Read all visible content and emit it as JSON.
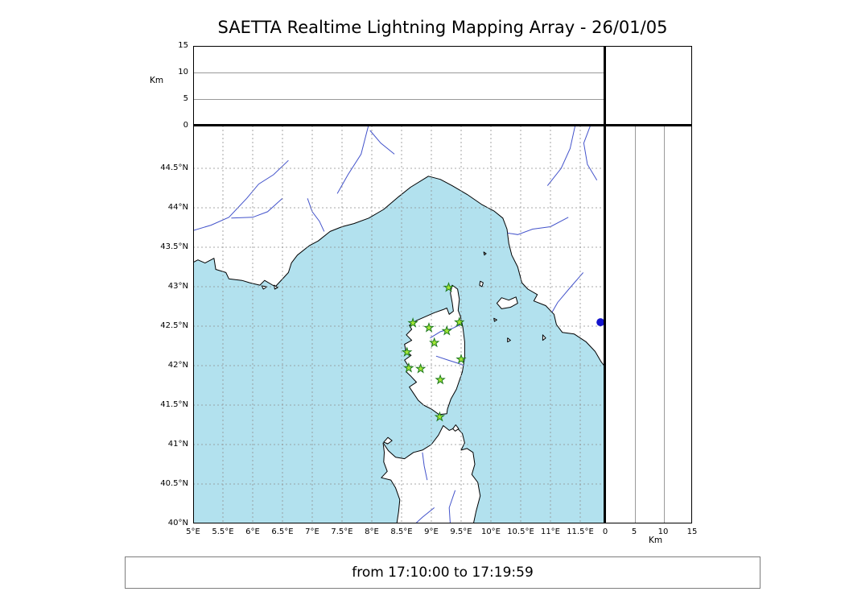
{
  "title": "SAETTA Realtime Lightning Mapping Array - 26/01/05",
  "status_bar": {
    "text": "from 17:10:00 to 17:19:59"
  },
  "colors": {
    "sea": "#b2e1ee",
    "land": "#ffffff",
    "coast": "#000000",
    "river": "#4353cb",
    "grid": "#8f8f8f",
    "panel_grid": "#9a9a9a",
    "station_fill": "#a2e636",
    "station_edge": "#1e7a1e",
    "source_dot": "#1414cc",
    "frame": "#000000"
  },
  "chart_data": {
    "type": "map",
    "title": "SAETTA Realtime Lightning Mapping Array - 26/01/05",
    "time_window": "from 17:10:00 to 17:19:59",
    "map": {
      "lon_range": [
        5.0,
        11.919
      ],
      "lat_range": [
        40.0,
        45.041
      ],
      "lon_ticks": {
        "values": [
          5,
          5.5,
          6,
          6.5,
          7,
          7.5,
          8,
          8.5,
          9,
          9.5,
          10,
          10.5,
          11,
          11.5
        ],
        "labels": [
          "5°E",
          "5.5°E",
          "6°E",
          "6.5°E",
          "7°E",
          "7.5°E",
          "8°E",
          "8.5°E",
          "9°E",
          "9.5°E",
          "10°E",
          "10.5°E",
          "11°E",
          "11.5°E"
        ]
      },
      "lat_ticks": {
        "values": [
          40,
          40.5,
          41,
          41.5,
          42,
          42.5,
          43,
          43.5,
          44,
          44.5
        ],
        "labels": [
          "40°N",
          "40.5°N",
          "41°N",
          "41.5°N",
          "42°N",
          "42.5°N",
          "43°N",
          "43.5°N",
          "44°N",
          "44.5°N"
        ]
      },
      "grid_style": "dashed",
      "stations_lonlat": [
        [
          9.29,
          42.99
        ],
        [
          8.69,
          42.54
        ],
        [
          8.96,
          42.48
        ],
        [
          9.26,
          42.44
        ],
        [
          9.47,
          42.55
        ],
        [
          9.05,
          42.29
        ],
        [
          8.59,
          42.17
        ],
        [
          9.5,
          42.08
        ],
        [
          8.62,
          41.97
        ],
        [
          8.82,
          41.96
        ],
        [
          9.15,
          41.82
        ],
        [
          9.14,
          41.35
        ]
      ],
      "sources_lonlat": [
        [
          11.84,
          42.55
        ]
      ]
    },
    "altitude_panels": {
      "axis_label": "Km",
      "km_range": [
        0,
        15
      ],
      "km_ticks": {
        "values": [
          0,
          5,
          10,
          15
        ],
        "labels": [
          "0",
          "5",
          "10",
          "15"
        ]
      },
      "km_gridlines": [
        5,
        10
      ]
    },
    "features": {
      "land": [
        [
          [
            4.9,
            43.27
          ],
          [
            5.08,
            43.34
          ],
          [
            5.2,
            43.3
          ],
          [
            5.35,
            43.36
          ],
          [
            5.38,
            43.22
          ],
          [
            5.55,
            43.18
          ],
          [
            5.6,
            43.1
          ],
          [
            5.82,
            43.08
          ],
          [
            5.95,
            43.05
          ],
          [
            6.12,
            43.02
          ],
          [
            6.2,
            43.08
          ],
          [
            6.38,
            43.0
          ],
          [
            6.6,
            43.18
          ],
          [
            6.65,
            43.3
          ],
          [
            6.75,
            43.4
          ],
          [
            6.95,
            43.52
          ],
          [
            7.1,
            43.58
          ],
          [
            7.3,
            43.7
          ],
          [
            7.5,
            43.76
          ],
          [
            7.7,
            43.8
          ],
          [
            7.95,
            43.87
          ],
          [
            8.2,
            43.98
          ],
          [
            8.45,
            44.14
          ],
          [
            8.65,
            44.26
          ],
          [
            8.95,
            44.4
          ],
          [
            9.15,
            44.36
          ],
          [
            9.35,
            44.28
          ],
          [
            9.6,
            44.17
          ],
          [
            9.85,
            44.04
          ],
          [
            10.05,
            43.96
          ],
          [
            10.2,
            43.87
          ],
          [
            10.27,
            43.73
          ],
          [
            10.3,
            43.55
          ],
          [
            10.35,
            43.4
          ],
          [
            10.45,
            43.25
          ],
          [
            10.52,
            43.05
          ],
          [
            10.62,
            42.97
          ],
          [
            10.78,
            42.9
          ],
          [
            10.72,
            42.82
          ],
          [
            10.92,
            42.76
          ],
          [
            11.06,
            42.65
          ],
          [
            11.1,
            42.52
          ],
          [
            11.2,
            42.42
          ],
          [
            11.4,
            42.4
          ],
          [
            11.6,
            42.3
          ],
          [
            11.75,
            42.18
          ],
          [
            11.85,
            42.05
          ],
          [
            12.0,
            41.9
          ],
          [
            12.3,
            41.75
          ],
          [
            12.3,
            45.3
          ],
          [
            4.9,
            45.3
          ]
        ],
        [
          [
            9.35,
            43.02
          ],
          [
            9.44,
            42.97
          ],
          [
            9.47,
            42.84
          ],
          [
            9.45,
            42.7
          ],
          [
            9.49,
            42.62
          ],
          [
            9.53,
            42.48
          ],
          [
            9.56,
            42.3
          ],
          [
            9.56,
            42.1
          ],
          [
            9.52,
            41.92
          ],
          [
            9.42,
            41.7
          ],
          [
            9.33,
            41.58
          ],
          [
            9.27,
            41.45
          ],
          [
            9.26,
            41.39
          ],
          [
            9.13,
            41.38
          ],
          [
            9.0,
            41.45
          ],
          [
            8.87,
            41.5
          ],
          [
            8.78,
            41.56
          ],
          [
            8.7,
            41.65
          ],
          [
            8.63,
            41.73
          ],
          [
            8.75,
            41.79
          ],
          [
            8.65,
            41.87
          ],
          [
            8.58,
            41.92
          ],
          [
            8.61,
            42.0
          ],
          [
            8.55,
            42.07
          ],
          [
            8.66,
            42.13
          ],
          [
            8.57,
            42.19
          ],
          [
            8.55,
            42.27
          ],
          [
            8.67,
            42.32
          ],
          [
            8.58,
            42.39
          ],
          [
            8.67,
            42.46
          ],
          [
            8.63,
            42.51
          ],
          [
            8.75,
            42.57
          ],
          [
            8.9,
            42.62
          ],
          [
            9.05,
            42.67
          ],
          [
            9.2,
            42.71
          ],
          [
            9.26,
            42.73
          ],
          [
            9.3,
            42.65
          ],
          [
            9.37,
            42.69
          ],
          [
            9.35,
            42.8
          ],
          [
            9.32,
            42.92
          ]
        ],
        [
          [
            8.4,
            39.9
          ],
          [
            8.45,
            40.15
          ],
          [
            8.47,
            40.3
          ],
          [
            8.4,
            40.45
          ],
          [
            8.32,
            40.55
          ],
          [
            8.16,
            40.58
          ],
          [
            8.26,
            40.66
          ],
          [
            8.2,
            40.78
          ],
          [
            8.21,
            40.9
          ],
          [
            8.19,
            41.02
          ],
          [
            8.28,
            40.92
          ],
          [
            8.4,
            40.84
          ],
          [
            8.55,
            40.82
          ],
          [
            8.7,
            40.9
          ],
          [
            8.85,
            40.93
          ],
          [
            9.0,
            41.0
          ],
          [
            9.12,
            41.12
          ],
          [
            9.2,
            41.24
          ],
          [
            9.3,
            41.18
          ],
          [
            9.42,
            41.22
          ],
          [
            9.52,
            41.14
          ],
          [
            9.56,
            41.02
          ],
          [
            9.5,
            40.93
          ],
          [
            9.6,
            40.95
          ],
          [
            9.7,
            40.9
          ],
          [
            9.73,
            40.75
          ],
          [
            9.68,
            40.62
          ],
          [
            9.78,
            40.52
          ],
          [
            9.82,
            40.35
          ],
          [
            9.75,
            40.15
          ],
          [
            9.68,
            39.9
          ]
        ],
        [
          [
            8.2,
            41.03
          ],
          [
            8.27,
            41.09
          ],
          [
            8.34,
            41.05
          ],
          [
            8.27,
            41.01
          ]
        ],
        [
          [
            9.36,
            41.2
          ],
          [
            9.41,
            41.25
          ],
          [
            9.46,
            41.2
          ],
          [
            9.4,
            41.17
          ]
        ],
        [
          [
            10.1,
            42.79
          ],
          [
            10.18,
            42.86
          ],
          [
            10.3,
            42.83
          ],
          [
            10.42,
            42.87
          ],
          [
            10.45,
            42.79
          ],
          [
            10.33,
            42.74
          ],
          [
            10.18,
            42.72
          ]
        ],
        [
          [
            9.82,
            43.07
          ],
          [
            9.87,
            43.05
          ],
          [
            9.85,
            43.0
          ],
          [
            9.81,
            43.02
          ]
        ],
        [
          [
            9.88,
            43.44
          ],
          [
            9.92,
            43.42
          ],
          [
            9.89,
            43.4
          ]
        ],
        [
          [
            10.05,
            42.6
          ],
          [
            10.1,
            42.58
          ],
          [
            10.06,
            42.56
          ]
        ],
        [
          [
            10.28,
            42.35
          ],
          [
            10.33,
            42.32
          ],
          [
            10.28,
            42.3
          ]
        ],
        [
          [
            10.87,
            42.39
          ],
          [
            10.92,
            42.35
          ],
          [
            10.87,
            42.32
          ]
        ],
        [
          [
            6.15,
            43.01
          ],
          [
            6.24,
            43.0
          ],
          [
            6.18,
            42.97
          ]
        ],
        [
          [
            6.36,
            43.02
          ],
          [
            6.42,
            42.99
          ],
          [
            6.37,
            42.97
          ]
        ]
      ],
      "rivers": [
        [
          [
            6.6,
            44.6
          ],
          [
            6.35,
            44.42
          ],
          [
            6.1,
            44.3
          ],
          [
            5.9,
            44.12
          ],
          [
            5.6,
            43.88
          ],
          [
            5.3,
            43.78
          ],
          [
            4.95,
            43.7
          ]
        ],
        [
          [
            6.5,
            44.12
          ],
          [
            6.25,
            43.95
          ],
          [
            6.0,
            43.88
          ],
          [
            5.64,
            43.87
          ]
        ],
        [
          [
            6.92,
            44.12
          ],
          [
            7.0,
            43.95
          ],
          [
            7.12,
            43.83
          ],
          [
            7.2,
            43.7
          ]
        ],
        [
          [
            7.42,
            44.18
          ],
          [
            7.6,
            44.42
          ],
          [
            7.82,
            44.68
          ],
          [
            7.95,
            45.06
          ]
        ],
        [
          [
            8.38,
            44.68
          ],
          [
            8.15,
            44.82
          ],
          [
            7.97,
            44.98
          ]
        ],
        [
          [
            11.3,
            43.88
          ],
          [
            11.0,
            43.76
          ],
          [
            10.7,
            43.73
          ],
          [
            10.45,
            43.66
          ],
          [
            10.28,
            43.68
          ]
        ],
        [
          [
            10.95,
            44.28
          ],
          [
            11.18,
            44.5
          ],
          [
            11.33,
            44.75
          ],
          [
            11.42,
            45.06
          ]
        ],
        [
          [
            11.68,
            45.06
          ],
          [
            11.56,
            44.82
          ],
          [
            11.62,
            44.55
          ],
          [
            11.78,
            44.35
          ]
        ],
        [
          [
            11.55,
            43.18
          ],
          [
            11.32,
            42.98
          ],
          [
            11.12,
            42.8
          ],
          [
            11.03,
            42.68
          ]
        ],
        [
          [
            8.98,
            42.35
          ],
          [
            9.15,
            42.43
          ],
          [
            9.35,
            42.47
          ],
          [
            9.49,
            42.52
          ]
        ],
        [
          [
            9.08,
            42.12
          ],
          [
            9.28,
            42.07
          ],
          [
            9.45,
            42.03
          ],
          [
            9.55,
            42.0
          ]
        ],
        [
          [
            8.93,
            40.55
          ],
          [
            8.88,
            40.73
          ],
          [
            8.85,
            40.9
          ]
        ],
        [
          [
            9.05,
            40.2
          ],
          [
            8.85,
            40.08
          ],
          [
            8.68,
            39.96
          ]
        ],
        [
          [
            9.32,
            39.96
          ],
          [
            9.3,
            40.2
          ],
          [
            9.4,
            40.42
          ]
        ]
      ]
    }
  }
}
